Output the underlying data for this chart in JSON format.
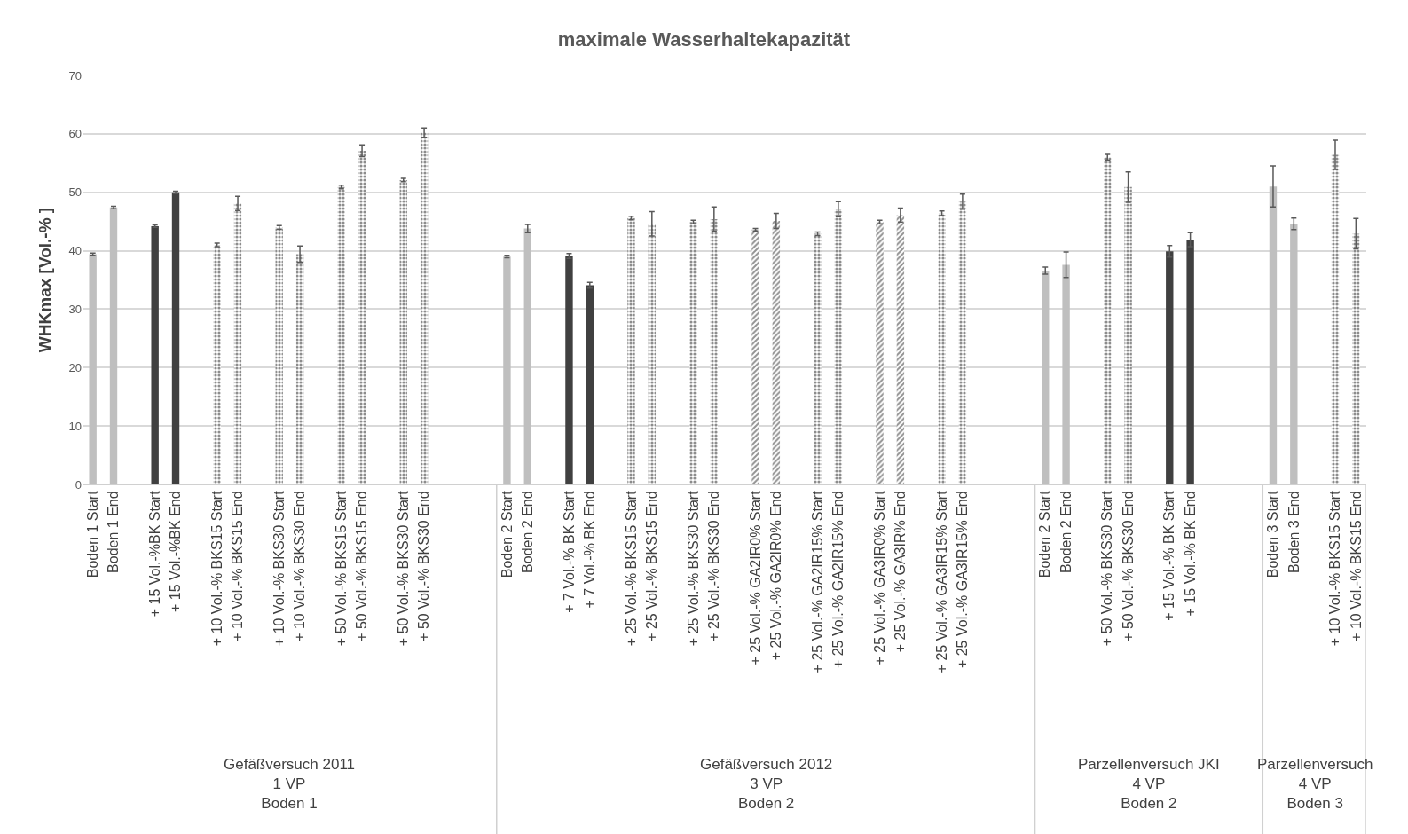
{
  "chart_data": {
    "type": "bar",
    "title": "maximale Wasserhaltekapazität",
    "ylabel": "WHKmax [Vol.-% ]",
    "categories": [
      "Boden 1 Start",
      "Boden 1 End",
      null,
      "+ 15 Vol.-%BK Start",
      "+ 15 Vol.-%BK End",
      null,
      "+ 10 Vol.-% BKS15 Start",
      "+ 10 Vol.-% BKS15 End",
      null,
      "+ 10 Vol.-% BKS30 Start",
      "+ 10 Vol.-% BKS30 End",
      null,
      "+ 50 Vol.-% BKS15 Start",
      "+ 50 Vol.-% BKS15 End",
      null,
      "+ 50 Vol.-% BKS30 Start",
      "+ 50 Vol.-% BKS30 End",
      null,
      null,
      null,
      "Boden 2 Start",
      "Boden 2 End",
      null,
      "+ 7 Vol.-% BK Start",
      "+ 7 Vol.-% BK End",
      null,
      "+ 25 Vol.-% BKS15 Start",
      "+ 25 Vol.-% BKS15 End",
      null,
      "+ 25 Vol.-% BKS30 Start",
      "+ 25 Vol.-% BKS30 End",
      null,
      "+ 25 Vol.-% GA2IR0% Start",
      "+ 25 Vol.-% GA2IR0% End",
      null,
      "+ 25 Vol.-% GA2IR15% Start",
      "+ 25 Vol.-% GA2IR15% End",
      null,
      "+ 25 Vol.-% GA3IR0% Start",
      "+ 25 Vol.-% GA3IR% End",
      null,
      "+ 25 Vol.-% GA3IR15% Start",
      "+ 25 Vol.-% GA3IR15% End",
      null,
      null,
      null,
      "Boden 2 Start",
      "Boden 2 End",
      null,
      "+ 50 Vol.-% BKS30 Start",
      "+ 50 Vol.-% BKS30 End",
      null,
      "+ 15 Vol.-% BK Start",
      "+ 15 Vol.-% BK End",
      null,
      null,
      null,
      "Boden 3 Start",
      "Boden 3 End",
      null,
      "+ 10 Vol.-% BKS15 Start",
      "+ 10 Vol.-% BKS15 End"
    ],
    "series": [
      {
        "color": "#bfbfbf",
        "values": [
          39.4,
          47.4,
          null,
          null,
          null,
          null,
          null,
          null,
          null,
          null,
          null,
          null,
          null,
          null,
          null,
          null,
          null,
          null,
          null,
          null,
          39.0,
          43.8,
          null,
          null,
          null,
          null,
          null,
          null,
          null,
          null,
          null,
          null,
          null,
          null,
          null,
          null,
          null,
          null,
          null,
          null,
          null,
          null,
          null,
          null,
          null,
          null,
          36.6,
          37.6,
          null,
          null,
          null,
          null,
          null,
          null,
          null,
          null,
          null,
          51.0,
          44.6,
          null,
          null,
          null
        ],
        "errors": [
          0.2,
          0.2,
          null,
          null,
          null,
          null,
          null,
          null,
          null,
          null,
          null,
          null,
          null,
          null,
          null,
          null,
          null,
          null,
          null,
          null,
          0.2,
          0.7,
          null,
          null,
          null,
          null,
          null,
          null,
          null,
          null,
          null,
          null,
          null,
          null,
          null,
          null,
          null,
          null,
          null,
          null,
          null,
          null,
          null,
          null,
          null,
          null,
          0.6,
          2.2,
          null,
          null,
          null,
          null,
          null,
          null,
          null,
          null,
          null,
          3.5,
          1.0,
          null,
          null,
          null
        ]
      },
      {
        "color": "#404040",
        "values": [
          null,
          null,
          null,
          44.2,
          50.0,
          null,
          null,
          null,
          null,
          null,
          null,
          null,
          null,
          null,
          null,
          null,
          null,
          null,
          null,
          null,
          null,
          null,
          null,
          39.1,
          34.1,
          null,
          null,
          null,
          null,
          null,
          null,
          null,
          null,
          null,
          null,
          null,
          null,
          null,
          null,
          null,
          null,
          null,
          null,
          null,
          null,
          null,
          null,
          null,
          null,
          null,
          null,
          null,
          39.9,
          41.9,
          null,
          null,
          null,
          null,
          null,
          null,
          null,
          null
        ],
        "errors": [
          null,
          null,
          null,
          0.2,
          0.2,
          null,
          null,
          null,
          null,
          null,
          null,
          null,
          null,
          null,
          null,
          null,
          null,
          null,
          null,
          null,
          null,
          null,
          null,
          0.4,
          0.5,
          null,
          null,
          null,
          null,
          null,
          null,
          null,
          null,
          null,
          null,
          null,
          null,
          null,
          null,
          null,
          null,
          null,
          null,
          null,
          null,
          null,
          null,
          null,
          null,
          null,
          null,
          null,
          1.0,
          1.2,
          null,
          null,
          null,
          null,
          null,
          null,
          null,
          null
        ]
      },
      {
        "color": "#1a1a1a",
        "values": [
          null,
          null,
          null,
          null,
          null,
          null,
          41.0,
          48.1,
          null,
          44.0,
          39.4,
          null,
          50.9,
          57.1,
          null,
          52.1,
          60.2,
          null,
          null,
          null,
          null,
          null,
          null,
          null,
          null,
          null,
          45.6,
          44.6,
          null,
          44.9,
          45.4,
          null,
          null,
          null,
          null,
          42.9,
          47.1,
          null,
          null,
          null,
          null,
          46.4,
          48.4,
          null,
          null,
          null,
          null,
          null,
          null,
          56.0,
          50.9,
          null,
          null,
          null,
          null,
          null,
          null,
          null,
          null,
          null,
          56.4,
          42.9
        ],
        "errors": [
          null,
          null,
          null,
          null,
          null,
          null,
          0.3,
          1.2,
          null,
          0.3,
          1.4,
          null,
          0.3,
          1.0,
          null,
          0.3,
          0.8,
          null,
          null,
          null,
          null,
          null,
          null,
          null,
          null,
          null,
          0.3,
          2.1,
          null,
          0.3,
          2.1,
          null,
          null,
          null,
          null,
          0.3,
          1.3,
          null,
          null,
          null,
          null,
          0.4,
          1.3,
          null,
          null,
          null,
          null,
          null,
          null,
          0.5,
          2.6,
          null,
          null,
          null,
          null,
          null,
          null,
          null,
          null,
          null,
          2.5,
          2.6
        ]
      },
      {
        "color": "#262626",
        "values": [
          null,
          null,
          null,
          null,
          null,
          null,
          null,
          null,
          null,
          null,
          null,
          null,
          null,
          null,
          null,
          null,
          null,
          null,
          null,
          null,
          null,
          null,
          null,
          null,
          null,
          null,
          null,
          null,
          null,
          null,
          null,
          null,
          43.6,
          45.1,
          null,
          null,
          null,
          null,
          44.9,
          46.1,
          null,
          null,
          null,
          null,
          null,
          null,
          null,
          null,
          null,
          null,
          null,
          null,
          null,
          null,
          null,
          null,
          null,
          null,
          null,
          null,
          null,
          null
        ],
        "errors": [
          null,
          null,
          null,
          null,
          null,
          null,
          null,
          null,
          null,
          null,
          null,
          null,
          null,
          null,
          null,
          null,
          null,
          null,
          null,
          null,
          null,
          null,
          null,
          null,
          null,
          null,
          null,
          null,
          null,
          null,
          null,
          null,
          0.2,
          1.3,
          null,
          null,
          null,
          null,
          0.3,
          1.2,
          null,
          null,
          null,
          null,
          null,
          null,
          null,
          null,
          null,
          null,
          null,
          null,
          null,
          null,
          null,
          null,
          null,
          null,
          null,
          null,
          null,
          null
        ]
      }
    ],
    "ylim": [
      0,
      70
    ],
    "yticks": [
      0,
      10,
      20,
      30,
      40,
      50,
      60,
      70
    ],
    "grid": "y",
    "annotations": [
      "Gefäßversuch 2011\n1 VP\nBoden 1",
      "Gefäßversuch 2012\n3 VP\nBoden 2",
      "Parzellenversuch JKI\n4 VP\nBoden 2",
      "Parzellenversuch\n4 VP\nBoden 3"
    ]
  }
}
